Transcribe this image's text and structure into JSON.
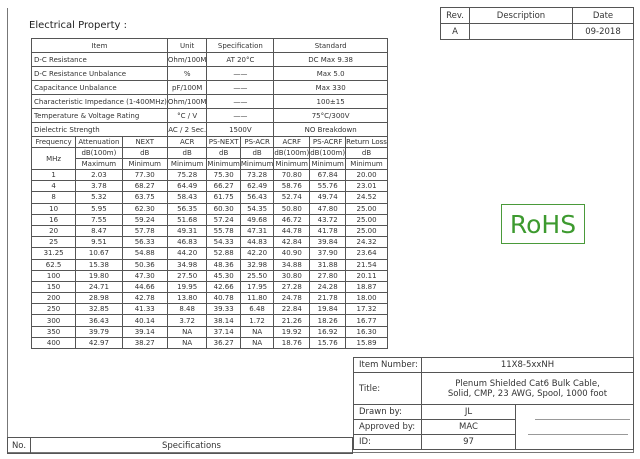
{
  "heading": "Electrical Property :",
  "revision": {
    "headers": [
      "Rev.",
      "Description",
      "Date"
    ],
    "row": [
      "A",
      "",
      "09-2018"
    ]
  },
  "properties": {
    "headers": [
      "Item",
      "Unit",
      "Specification",
      "Standard"
    ],
    "rows": [
      [
        "D-C Resistance",
        "Ohm/100M",
        "AT 20°C",
        "DC Max 9.38"
      ],
      [
        "D-C Resistance Unbalance",
        "%",
        "——",
        "Max 5.0"
      ],
      [
        "Capacitance Unbalance",
        "pF/100M",
        "——",
        "Max 330"
      ],
      [
        "Characteristic Impedance (1-400MHz)",
        "Ohm/100M",
        "——",
        "100±15"
      ],
      [
        "Temperature & Voltage Rating",
        "°C / V",
        "——",
        "75°C/300V"
      ],
      [
        "Dielectric Strength",
        "AC / 2 Sec.",
        "1500V",
        "NO Breakdown"
      ]
    ]
  },
  "frequency_table": {
    "headers": [
      "Frequency",
      "Attenuation",
      "NEXT",
      "ACR",
      "PS-NEXT",
      "PS-ACR",
      "ACRF",
      "PS-ACRF",
      "Return Loss"
    ],
    "freq_unit": "MHz",
    "units": [
      "dB(100m)",
      "dB",
      "dB",
      "dB",
      "dB",
      "dB(100m)",
      "dB(100m)",
      "dB"
    ],
    "limits": [
      "Maximum",
      "Minimum",
      "Minimum",
      "Minimum",
      "Minimum",
      "Minimum",
      "Minimum",
      "Minimum"
    ],
    "rows": [
      [
        "1",
        "2.03",
        "77.30",
        "75.28",
        "75.30",
        "73.28",
        "70.80",
        "67.84",
        "20.00"
      ],
      [
        "4",
        "3.78",
        "68.27",
        "64.49",
        "66.27",
        "62.49",
        "58.76",
        "55.76",
        "23.01"
      ],
      [
        "8",
        "5.32",
        "63.75",
        "58.43",
        "61.75",
        "56.43",
        "52.74",
        "49.74",
        "24.52"
      ],
      [
        "10",
        "5.95",
        "62.30",
        "56.35",
        "60.30",
        "54.35",
        "50.80",
        "47.80",
        "25.00"
      ],
      [
        "16",
        "7.55",
        "59.24",
        "51.68",
        "57.24",
        "49.68",
        "46.72",
        "43.72",
        "25.00"
      ],
      [
        "20",
        "8.47",
        "57.78",
        "49.31",
        "55.78",
        "47.31",
        "44.78",
        "41.78",
        "25.00"
      ],
      [
        "25",
        "9.51",
        "56.33",
        "46.83",
        "54.33",
        "44.83",
        "42.84",
        "39.84",
        "24.32"
      ],
      [
        "31.25",
        "10.67",
        "54.88",
        "44.20",
        "52.88",
        "42.20",
        "40.90",
        "37.90",
        "23.64"
      ],
      [
        "62.5",
        "15.38",
        "50.36",
        "34.98",
        "48.36",
        "32.98",
        "34.88",
        "31.88",
        "21.54"
      ],
      [
        "100",
        "19.80",
        "47.30",
        "27.50",
        "45.30",
        "25.50",
        "30.80",
        "27.80",
        "20.11"
      ],
      [
        "150",
        "24.71",
        "44.66",
        "19.95",
        "42.66",
        "17.95",
        "27.28",
        "24.28",
        "18.87"
      ],
      [
        "200",
        "28.98",
        "42.78",
        "13.80",
        "40.78",
        "11.80",
        "24.78",
        "21.78",
        "18.00"
      ],
      [
        "250",
        "32.85",
        "41.33",
        "8.48",
        "39.33",
        "6.48",
        "22.84",
        "19.84",
        "17.32"
      ],
      [
        "300",
        "36.43",
        "40.14",
        "3.72",
        "38.14",
        "1.72",
        "21.26",
        "18.26",
        "16.77"
      ],
      [
        "350",
        "39.79",
        "39.14",
        "NA",
        "37.14",
        "NA",
        "19.92",
        "16.92",
        "16.30"
      ],
      [
        "400",
        "42.97",
        "38.27",
        "NA",
        "36.27",
        "NA",
        "18.76",
        "15.76",
        "15.89"
      ]
    ]
  },
  "rohs": {
    "label": "RoHS",
    "color": "#3d9a2f"
  },
  "title_block": {
    "item_number_label": "Item Number:",
    "item_number": "11X8-5xxNH",
    "title_label": "Title:",
    "title_line1": "Plenum Shielded Cat6 Bulk Cable,",
    "title_line2": "Solid, CMP, 23 AWG, Spool, 1000 foot",
    "drawn_by_label": "Drawn by:",
    "drawn_by": "JL",
    "approved_by_label": "Approved by:",
    "approved_by": "MAC",
    "id_label": "ID:",
    "id": "97"
  },
  "footer": {
    "no_label": "No.",
    "specifications_label": "Specifications"
  }
}
